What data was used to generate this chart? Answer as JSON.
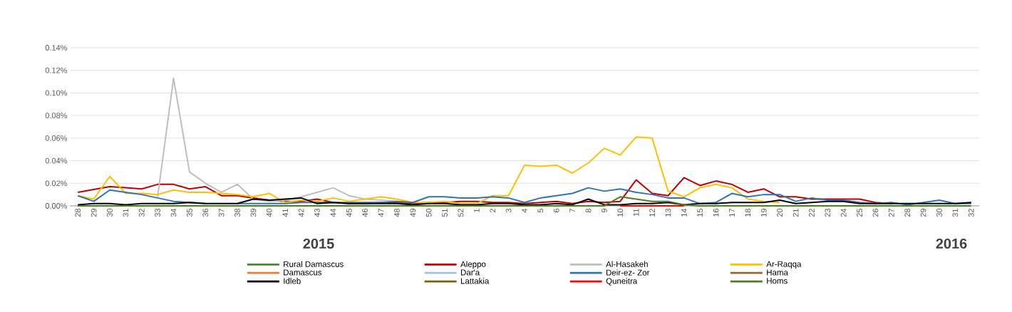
{
  "chart_data": {
    "type": "line",
    "categories": [
      "28",
      "29",
      "30",
      "31",
      "32",
      "33",
      "34",
      "35",
      "36",
      "37",
      "38",
      "39",
      "40",
      "41",
      "42",
      "43",
      "44",
      "45",
      "46",
      "47",
      "48",
      "49",
      "50",
      "51",
      "52",
      "1",
      "2",
      "3",
      "4",
      "5",
      "6",
      "7",
      "8",
      "9",
      "10",
      "11",
      "12",
      "13",
      "14",
      "15",
      "16",
      "17",
      "18",
      "19",
      "20",
      "21",
      "22",
      "23",
      "24",
      "25",
      "26",
      "27",
      "28",
      "29",
      "30",
      "31",
      "32"
    ],
    "series": [
      {
        "name": "Rural Damascus",
        "color": "#548235",
        "values": [
          null,
          null,
          null,
          null,
          null,
          null,
          null,
          null,
          null,
          null,
          null,
          null,
          null,
          null,
          null,
          null,
          null,
          null,
          null,
          null,
          null,
          null,
          null,
          null,
          null,
          null,
          null,
          null,
          null,
          null,
          null,
          null,
          null,
          null,
          null,
          null,
          null,
          null,
          null,
          null,
          null,
          null,
          null,
          null,
          null,
          null,
          null,
          null,
          null,
          null,
          null,
          null,
          null,
          null,
          null,
          null,
          null
        ]
      },
      {
        "name": "Aleppo",
        "color": "#c00000",
        "values": [
          0.012,
          0.0145,
          0.017,
          0.016,
          0.015,
          0.019,
          0.019,
          0.015,
          0.017,
          0.009,
          0.009,
          0.007,
          0.005,
          0.004,
          0.004,
          0.006,
          0.003,
          0.002,
          0.002,
          0.003,
          0.003,
          0.002,
          0.003,
          0.003,
          0.004,
          0.004,
          0.003,
          0.003,
          0.002,
          0.003,
          0.004,
          0.002,
          0.004,
          0.003,
          0.004,
          0.023,
          0.011,
          0.009,
          0.025,
          0.018,
          0.022,
          0.019,
          0.012,
          0.015,
          0.008,
          0.008,
          0.006,
          0.006,
          0.006,
          0.006,
          0.003,
          0.002,
          null,
          null,
          null,
          null,
          null
        ]
      },
      {
        "name": "Al-Hasakeh",
        "color": "#bfbfbf",
        "values": [
          null,
          null,
          null,
          null,
          null,
          0.008,
          0.113,
          0.03,
          0.02,
          0.012,
          0.019,
          0.006,
          0.004,
          0.005,
          0.008,
          0.012,
          0.016,
          0.009,
          0.006,
          0.005,
          0.004,
          0.003,
          null,
          null,
          null,
          null,
          null,
          null,
          null,
          null,
          null,
          null,
          null,
          null,
          null,
          null,
          null,
          null,
          null,
          null,
          null,
          null,
          null,
          null,
          null,
          null,
          null,
          null,
          null,
          null,
          null,
          null,
          null,
          null,
          null,
          null,
          null
        ]
      },
      {
        "name": "Ar-Raqqa",
        "color": "#ffc000",
        "values": [
          0.009,
          0.006,
          0.026,
          0.011,
          0.011,
          0.01,
          0.014,
          0.012,
          0.012,
          0.011,
          0.01,
          0.008,
          0.011,
          0.003,
          0.005,
          0.004,
          0.007,
          0.004,
          0.006,
          0.008,
          0.006,
          0.003,
          0.003,
          0.004,
          0.002,
          0.002,
          0.009,
          0.009,
          0.036,
          0.035,
          0.036,
          0.029,
          0.038,
          0.051,
          0.045,
          0.061,
          0.06,
          0.013,
          0.008,
          0.016,
          0.019,
          0.016,
          0.006,
          0.004,
          0.003,
          null,
          null,
          null,
          null,
          null,
          null,
          null,
          null,
          null,
          null,
          null,
          null
        ]
      },
      {
        "name": "Damascus",
        "color": "#ed7d31",
        "values": [
          null,
          null,
          null,
          null,
          null,
          null,
          null,
          null,
          null,
          null,
          null,
          null,
          null,
          null,
          null,
          null,
          null,
          null,
          null,
          null,
          null,
          null,
          null,
          null,
          null,
          null,
          null,
          null,
          null,
          null,
          null,
          null,
          null,
          null,
          null,
          null,
          null,
          null,
          null,
          null,
          null,
          null,
          null,
          null,
          null,
          null,
          null,
          null,
          null,
          null,
          null,
          null,
          null,
          null,
          null,
          null,
          null
        ]
      },
      {
        "name": "Dar'a",
        "color": "#9dc3e6",
        "values": [
          null,
          null,
          null,
          null,
          null,
          null,
          null,
          null,
          null,
          null,
          null,
          null,
          null,
          null,
          null,
          null,
          null,
          null,
          null,
          null,
          null,
          null,
          null,
          null,
          null,
          null,
          null,
          null,
          null,
          null,
          null,
          null,
          null,
          null,
          null,
          null,
          null,
          null,
          null,
          null,
          null,
          null,
          null,
          null,
          null,
          null,
          null,
          null,
          null,
          null,
          null,
          null,
          null,
          null,
          null,
          null,
          null
        ]
      },
      {
        "name": "Deir-ez- Zor",
        "color": "#2e75b6",
        "values": [
          0.009,
          0.004,
          0.014,
          0.012,
          0.01,
          0.007,
          0.004,
          0.003,
          0.002,
          null,
          0.002,
          0.002,
          0.002,
          0.002,
          0.003,
          0.003,
          0.003,
          0.003,
          0.003,
          0.003,
          0.004,
          0.003,
          0.008,
          0.008,
          0.007,
          0.007,
          0.008,
          0.007,
          0.003,
          0.007,
          0.009,
          0.011,
          0.016,
          0.013,
          0.015,
          0.012,
          0.01,
          0.007,
          0.007,
          0.002,
          0.003,
          0.011,
          0.008,
          0.01,
          0.01,
          0.004,
          0.007,
          0.005,
          0.005,
          0.003,
          0.002,
          0.003,
          0.001,
          0.003,
          0.005,
          0.002,
          0.002
        ]
      },
      {
        "name": "Hama",
        "color": "#996633",
        "values": [
          null,
          null,
          null,
          null,
          null,
          null,
          null,
          null,
          null,
          null,
          null,
          null,
          null,
          null,
          null,
          null,
          null,
          null,
          null,
          null,
          null,
          null,
          null,
          null,
          null,
          null,
          null,
          null,
          null,
          null,
          null,
          null,
          null,
          null,
          null,
          null,
          null,
          null,
          null,
          null,
          null,
          null,
          null,
          null,
          null,
          null,
          null,
          null,
          null,
          null,
          null,
          null,
          null,
          null,
          null,
          null,
          null
        ]
      },
      {
        "name": "Idleb",
        "color": "#000000",
        "values": [
          0.001,
          0.002,
          0.002,
          0.001,
          0.002,
          0.002,
          0.002,
          0.003,
          0.002,
          0.002,
          0.002,
          0.006,
          0.005,
          0.006,
          0.007,
          0.002,
          0.003,
          0.002,
          0.002,
          0.002,
          0.002,
          0.001,
          0.002,
          0.002,
          0.001,
          0.001,
          0.002,
          0.002,
          0.001,
          0.001,
          0.002,
          0.001,
          0.006,
          0.001,
          0.001,
          0.002,
          0.002,
          0.003,
          0.001,
          0.002,
          0.002,
          0.003,
          0.003,
          0.003,
          0.005,
          0.002,
          0.003,
          0.004,
          0.004,
          0.002,
          0.002,
          0.002,
          0.002,
          0.002,
          0.002,
          0.002,
          0.003
        ]
      },
      {
        "name": "Lattakia",
        "color": "#7f6000",
        "values": [
          null,
          null,
          null,
          null,
          null,
          null,
          null,
          null,
          null,
          null,
          null,
          null,
          null,
          null,
          null,
          null,
          null,
          null,
          null,
          null,
          null,
          null,
          null,
          null,
          null,
          null,
          null,
          null,
          null,
          null,
          null,
          null,
          null,
          null,
          null,
          null,
          null,
          null,
          null,
          null,
          null,
          null,
          null,
          null,
          null,
          null,
          null,
          null,
          null,
          null,
          null,
          null,
          null,
          null,
          null,
          null,
          null
        ]
      },
      {
        "name": "Quneitra",
        "color": "#ff0000",
        "values": [
          null,
          null,
          null,
          null,
          null,
          null,
          null,
          null,
          null,
          null,
          null,
          null,
          null,
          null,
          null,
          null,
          null,
          null,
          null,
          null,
          null,
          null,
          null,
          null,
          null,
          null,
          null,
          null,
          null,
          null,
          null,
          null,
          null,
          null,
          0,
          0,
          0,
          0,
          0,
          null,
          null,
          null,
          null,
          null,
          null,
          null,
          null,
          null,
          null,
          null,
          null,
          null,
          null,
          null,
          null,
          null,
          null
        ]
      },
      {
        "name": "Homs",
        "color": "#4f7a28",
        "values": [
          0,
          0,
          0,
          0,
          0,
          0,
          0,
          0,
          0,
          0,
          0,
          0,
          0,
          0,
          0,
          0,
          0,
          0,
          0,
          0,
          0,
          0,
          0,
          0,
          0,
          0,
          0,
          0,
          0,
          0,
          0,
          0,
          0,
          0,
          0.008,
          0.006,
          0.004,
          0.004,
          0.001,
          0,
          0,
          0,
          0,
          0,
          0,
          0,
          0,
          0,
          0,
          0,
          0,
          0,
          0,
          0,
          0,
          0,
          0
        ]
      }
    ],
    "ylim": [
      0,
      0.14
    ],
    "yticks": [
      {
        "value": 0,
        "label": "0.00%"
      },
      {
        "value": 0.02,
        "label": "0.02%"
      },
      {
        "value": 0.04,
        "label": "0.04%"
      },
      {
        "value": 0.06,
        "label": "0.06%"
      },
      {
        "value": 0.08,
        "label": "0.08%"
      },
      {
        "value": 0.1,
        "label": "0.10%"
      },
      {
        "value": 0.12,
        "label": "0.12%"
      },
      {
        "value": 0.14,
        "label": "0.14%"
      }
    ],
    "annotations": [
      "2015",
      "2016"
    ],
    "grid": "y",
    "legend": "bottom",
    "marker": "none",
    "line_style": "solid"
  }
}
